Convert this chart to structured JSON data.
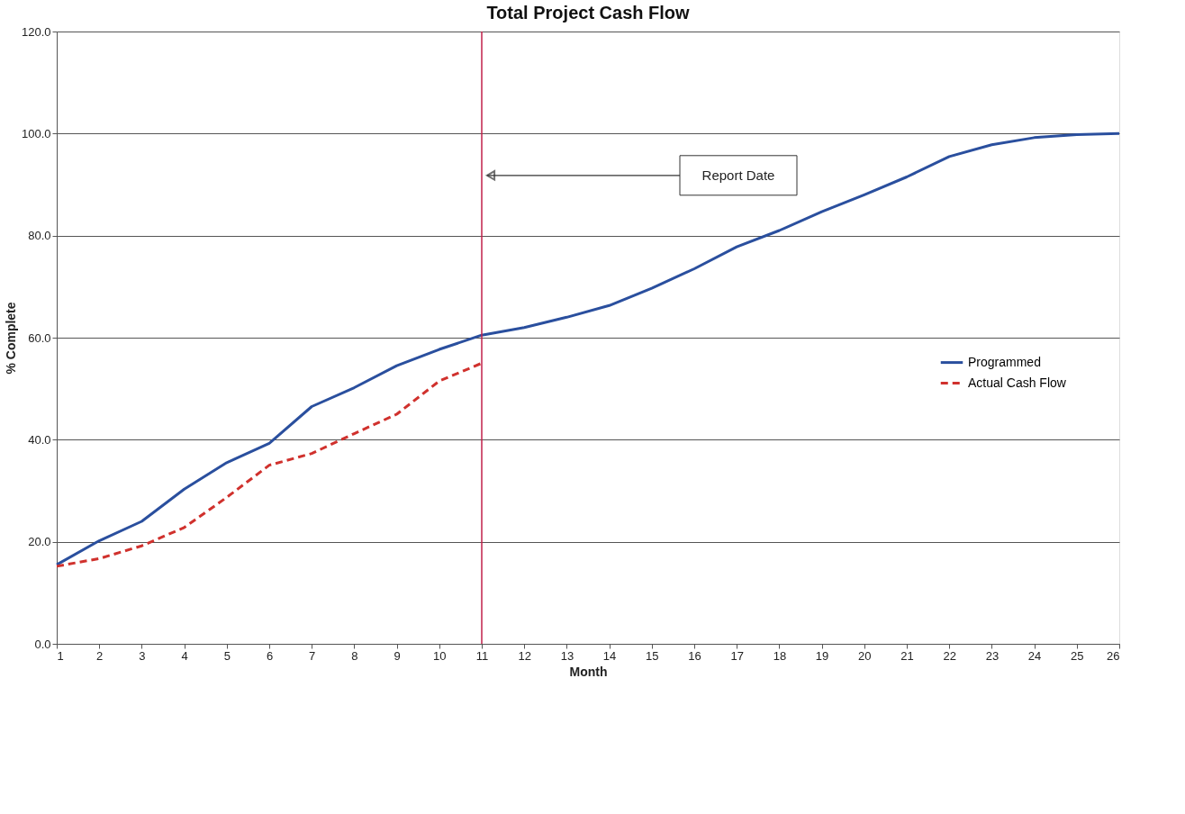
{
  "chart_data": {
    "type": "line",
    "title": "Total Project Cash Flow",
    "xlabel": "Month",
    "ylabel": "% Complete",
    "x": [
      1,
      2,
      3,
      4,
      5,
      6,
      7,
      8,
      9,
      10,
      11,
      12,
      13,
      14,
      15,
      16,
      17,
      18,
      19,
      20,
      21,
      22,
      23,
      24,
      25,
      26
    ],
    "series": [
      {
        "name": "Programmed",
        "color": "#2a4f9e",
        "line_style": "solid",
        "values": [
          15.5,
          20.2,
          24,
          30.3,
          35.5,
          39.3,
          46.5,
          50.2,
          54.5,
          57.7,
          60.5,
          62,
          64,
          66.3,
          69.7,
          73.5,
          77.8,
          81,
          84.7,
          88,
          91.5,
          95.5,
          97.8,
          99.2,
          99.8,
          100
        ]
      },
      {
        "name": "Actual Cash Flow",
        "color": "#d0312d",
        "line_style": "dashed",
        "values": [
          15.2,
          16.7,
          19.2,
          22.8,
          28.7,
          35,
          37.3,
          41.2,
          45,
          51.5,
          55,
          null,
          null,
          null,
          null,
          null,
          null,
          null,
          null,
          null,
          null,
          null,
          null,
          null,
          null,
          null
        ]
      }
    ],
    "xlim": [
      1,
      26
    ],
    "xticks": [
      1,
      2,
      3,
      4,
      5,
      6,
      7,
      8,
      9,
      10,
      11,
      12,
      13,
      14,
      15,
      16,
      17,
      18,
      19,
      20,
      21,
      22,
      23,
      24,
      25,
      26
    ],
    "ylim": [
      0,
      120
    ],
    "yticks": [
      {
        "value": 0,
        "label": "0.0"
      },
      {
        "value": 20,
        "label": "20.0"
      },
      {
        "value": 40,
        "label": "40.0"
      },
      {
        "value": 60,
        "label": "60.0"
      },
      {
        "value": 80,
        "label": "80.0"
      },
      {
        "value": 100,
        "label": "100.0"
      },
      {
        "value": 120,
        "label": "120.0"
      }
    ],
    "ref_lines": [
      {
        "axis": "x",
        "value": 11,
        "color": "#c0204a"
      }
    ],
    "annotations": [
      "Report Date"
    ],
    "grid": "y",
    "legend": "right",
    "marker": "none"
  }
}
